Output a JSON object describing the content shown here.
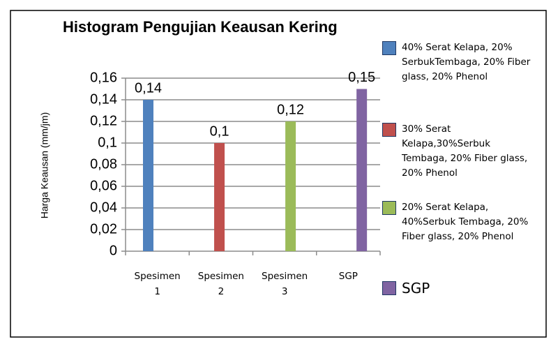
{
  "chart_data": {
    "type": "bar",
    "title": "Histogram Pengujian Keausan Kering",
    "y_label": "Harga Keausan (mm/jm)",
    "categories": [
      "Spesimen 1",
      "Spesimen 2",
      "Spesimen 3",
      "SGP"
    ],
    "series": [
      {
        "name": "40% Serat Kelapa, 20% SerbukTembaga, 20% Fiber glass, 20% Phenol",
        "color": "#4f81bd",
        "values": [
          0.14,
          null,
          null,
          null
        ],
        "value_labels": [
          "0,14",
          null,
          null,
          null
        ]
      },
      {
        "name": "30% Serat Kelapa,30%Serbuk Tembaga, 20% Fiber glass, 20% Phenol",
        "color": "#c0504d",
        "values": [
          null,
          0.1,
          null,
          null
        ],
        "value_labels": [
          null,
          "0,1",
          null,
          null
        ]
      },
      {
        "name": "20% Serat Kelapa, 40%Serbuk Tembaga, 20% Fiber glass, 20% Phenol",
        "color": "#9bbb59",
        "values": [
          null,
          null,
          0.12,
          null
        ],
        "value_labels": [
          null,
          null,
          "0,12",
          null
        ]
      },
      {
        "name": "SGP",
        "color": "#8064a2",
        "values": [
          null,
          null,
          null,
          0.15
        ],
        "value_labels": [
          null,
          null,
          null,
          "0,15"
        ]
      }
    ],
    "ylim": [
      0,
      0.16
    ],
    "yticks": [
      0,
      {
        "value": 0.02,
        "label": "0,02"
      },
      {
        "value": 0.04,
        "label": "0,04"
      },
      {
        "value": 0.06,
        "label": "0,06"
      },
      {
        "value": 0.08,
        "label": "0,08"
      },
      {
        "value": 0.1,
        "label": "0,1"
      },
      {
        "value": 0.12,
        "label": "0,12"
      },
      {
        "value": 0.14,
        "label": "0,14"
      },
      {
        "value": 0.16,
        "label": "0,16"
      }
    ],
    "grid": true,
    "legend": "right"
  }
}
